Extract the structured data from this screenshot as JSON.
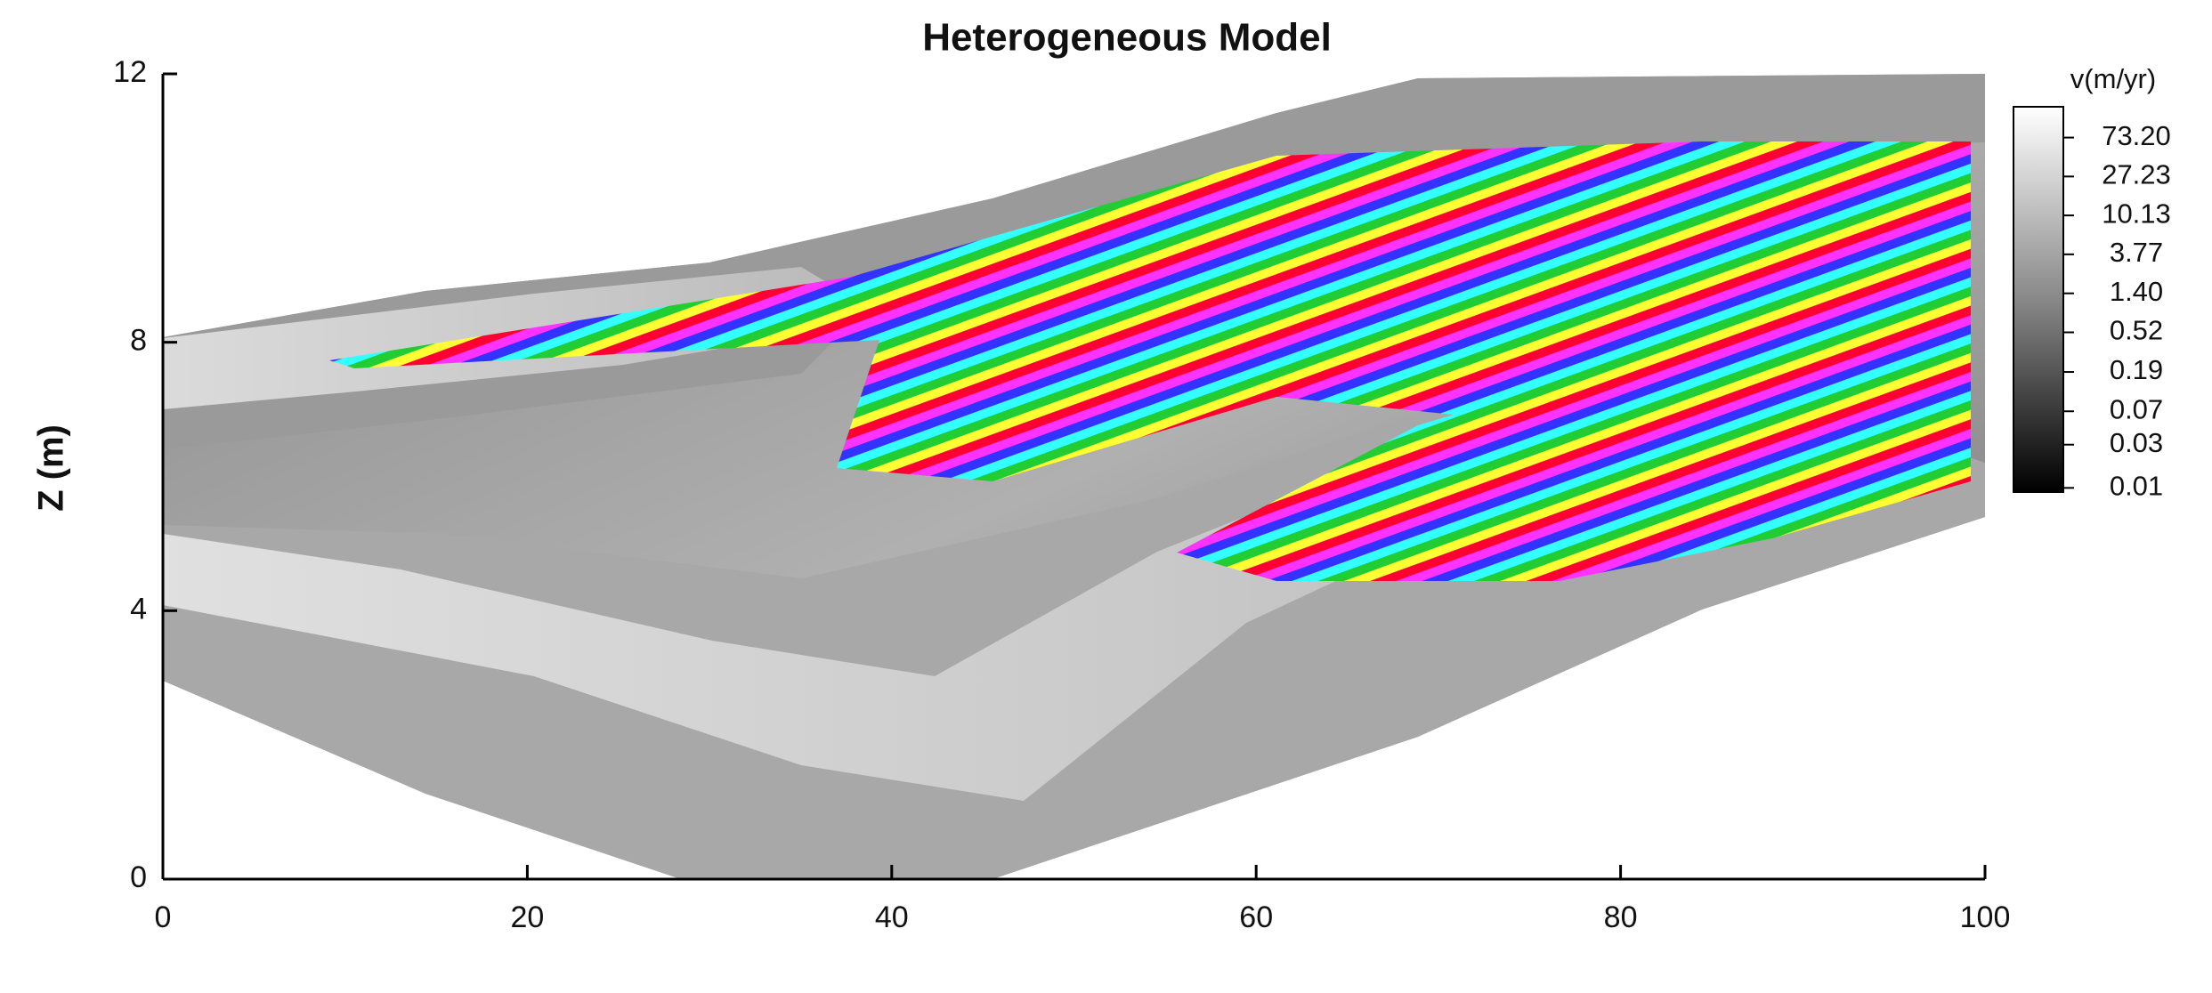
{
  "chart_data": {
    "type": "surface",
    "title": "Heterogeneous Model",
    "ylabel": "Z (m)",
    "xlim": [
      0,
      100
    ],
    "xticks": [
      0,
      20,
      40,
      60,
      80,
      100
    ],
    "ylim": [
      0,
      12
    ],
    "yticks": [
      0,
      4,
      8,
      12
    ],
    "colorbar": {
      "label": "v(m/yr)",
      "log": true,
      "lim": [
        0.009,
        160
      ],
      "ticks": [
        {
          "value": 73.2,
          "label": "73.20"
        },
        27.23,
        10.13,
        3.77,
        {
          "value": 1.4,
          "label": "1.40"
        },
        0.52,
        0.19,
        0.07,
        0.03,
        0.01
      ]
    }
  }
}
